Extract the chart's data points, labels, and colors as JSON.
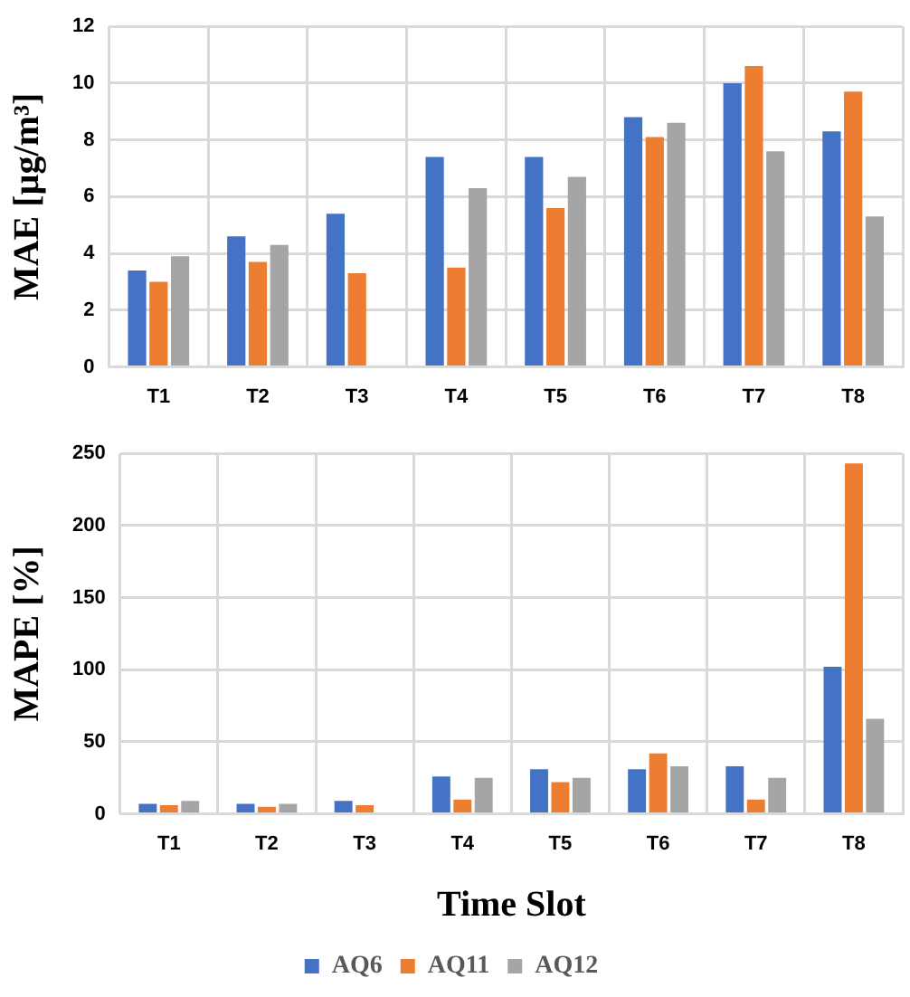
{
  "chart_data": [
    {
      "type": "bar",
      "ylabel": "MAE [µg/m³]",
      "categories": [
        "T1",
        "T2",
        "T3",
        "T4",
        "T5",
        "T6",
        "T7",
        "T8"
      ],
      "series": [
        {
          "color": "#4472c4",
          "values": [
            3.4,
            4.6,
            5.4,
            7.4,
            7.4,
            8.8,
            10.0,
            8.3
          ]
        },
        {
          "color": "#ed7d31",
          "values": [
            3.0,
            3.7,
            3.3,
            3.5,
            5.6,
            8.1,
            10.6,
            9.7
          ]
        },
        {
          "color": "#a5a5a5",
          "values": [
            3.9,
            4.3,
            null,
            6.3,
            6.7,
            8.6,
            7.6,
            5.3
          ]
        }
      ],
      "ylim": [
        0,
        12
      ],
      "yticks": [
        0,
        2,
        4,
        6,
        8,
        10,
        12
      ],
      "grid": true,
      "legend": false
    },
    {
      "type": "bar",
      "ylabel": "MAPE [%]",
      "xlabel": "Time Slot",
      "categories": [
        "T1",
        "T2",
        "T3",
        "T4",
        "T5",
        "T6",
        "T7",
        "T8"
      ],
      "series": [
        {
          "name": "AQ6",
          "color": "#4472c4",
          "values": [
            7,
            7,
            9,
            26,
            31,
            31,
            33,
            102
          ]
        },
        {
          "name": "AQ11",
          "color": "#ed7d31",
          "values": [
            6,
            5,
            6,
            10,
            22,
            42,
            10,
            243
          ]
        },
        {
          "name": "AQ12",
          "color": "#a5a5a5",
          "values": [
            9,
            7,
            null,
            25,
            25,
            33,
            25,
            66
          ]
        }
      ],
      "ylim": [
        0,
        250
      ],
      "yticks": [
        0,
        50,
        100,
        150,
        200,
        250
      ],
      "grid": true,
      "legend": "bottom"
    }
  ]
}
